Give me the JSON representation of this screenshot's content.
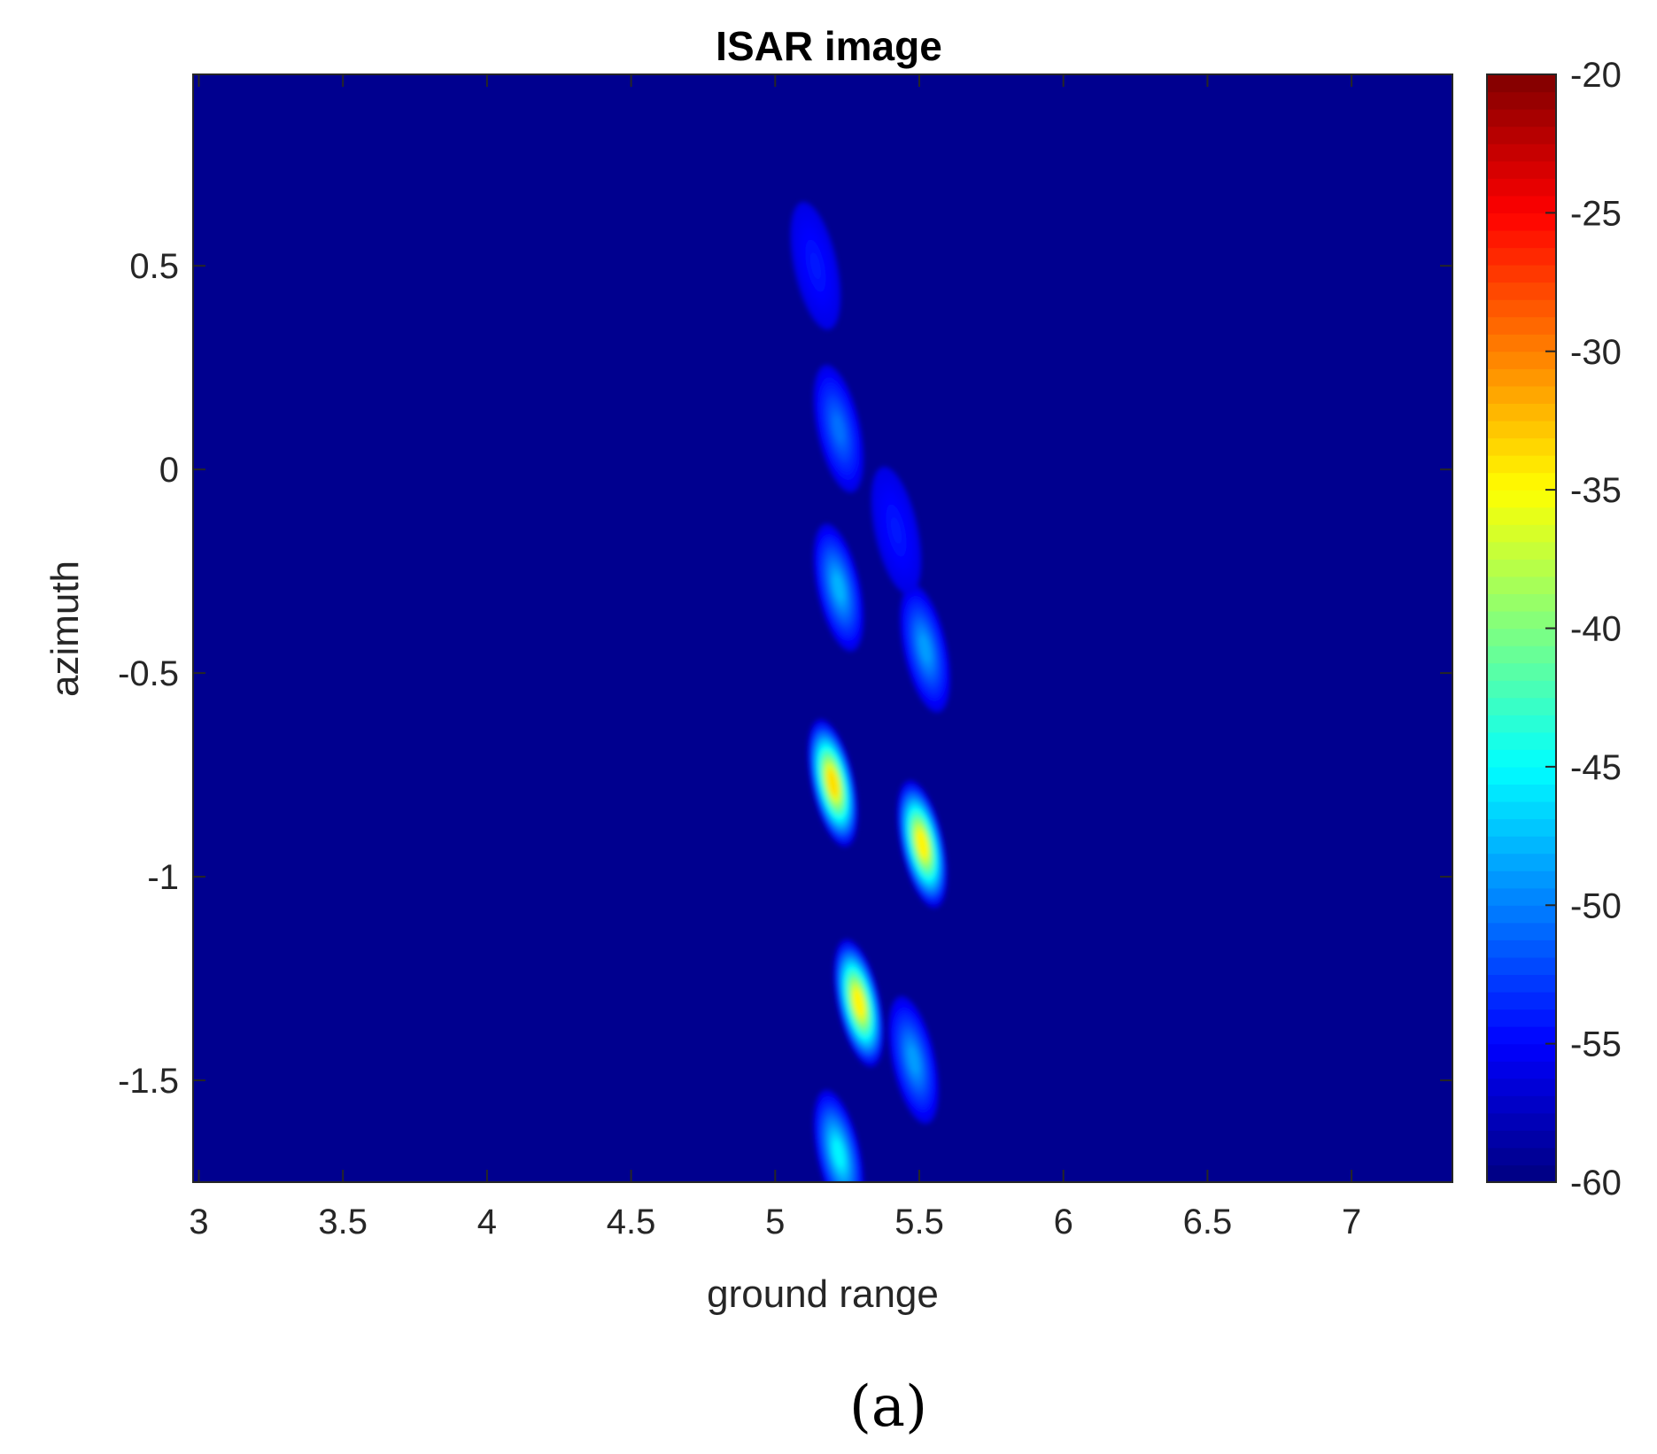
{
  "figure": {
    "caption": "(a)"
  },
  "chart_data": {
    "type": "heatmap",
    "title": "ISAR image",
    "xlabel": "ground range",
    "ylabel": "azimuth",
    "xlim": [
      2.98,
      7.35
    ],
    "ylim": [
      -1.75,
      0.97
    ],
    "x_ticks": [
      3,
      3.5,
      4,
      4.5,
      5,
      5.5,
      6,
      6.5,
      7
    ],
    "x_tick_labels": [
      "3",
      "3.5",
      "4",
      "4.5",
      "5",
      "5.5",
      "6",
      "6.5",
      "7"
    ],
    "y_ticks": [
      0.5,
      0,
      -0.5,
      -1,
      -1.5
    ],
    "y_tick_labels": [
      "0.5",
      "0",
      "-0.5",
      "-1",
      "-1.5"
    ],
    "colorbar": {
      "range": [
        -60,
        -20
      ],
      "ticks": [
        -20,
        -25,
        -30,
        -35,
        -40,
        -45,
        -50,
        -55,
        -60
      ],
      "tick_labels": [
        "-20",
        "-25",
        "-30",
        "-35",
        "-40",
        "-45",
        "-50",
        "-55",
        "-60"
      ],
      "colormap": "jet"
    },
    "background_value": -60,
    "scatterers": [
      {
        "x": 5.2,
        "y": -0.77,
        "peak": -31
      },
      {
        "x": 5.51,
        "y": -0.92,
        "peak": -32
      },
      {
        "x": 5.29,
        "y": -1.31,
        "peak": -32
      },
      {
        "x": 5.22,
        "y": -1.68,
        "peak": -44
      },
      {
        "x": 5.22,
        "y": -0.29,
        "peak": -47
      },
      {
        "x": 5.52,
        "y": -0.44,
        "peak": -48
      },
      {
        "x": 5.22,
        "y": 0.1,
        "peak": -50
      },
      {
        "x": 5.14,
        "y": 0.5,
        "peak": -54
      },
      {
        "x": 5.48,
        "y": -1.45,
        "peak": -48
      },
      {
        "x": 5.42,
        "y": -0.15,
        "peak": -54
      }
    ],
    "grid": false,
    "colors": {
      "background": "#00008f",
      "axes_line": "#262626"
    }
  }
}
